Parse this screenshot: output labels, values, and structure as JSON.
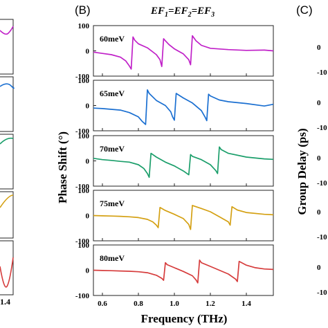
{
  "panel_b_label": "(B)",
  "panel_c_label": "(C)",
  "header_left": "EF",
  "header_sub_1": "1",
  "header_mid": "=EF",
  "header_sub_2": "2",
  "header_mid2": "=EF",
  "header_sub_3": "3",
  "left_partial_tick": "1.4",
  "right_axis_label": "Group Delay (ps)",
  "right_partial_ticks": [
    "0",
    "-10",
    "0",
    "-10",
    "0",
    "-10",
    "0",
    "-10",
    "0",
    "-10"
  ],
  "chart_data": {
    "type": "line",
    "xlabel": "Frequency (THz)",
    "ylabel": "Phase Shift (°)",
    "xlim": [
      0.55,
      1.55
    ],
    "ylim": [
      -100,
      100
    ],
    "xticks": [
      0.6,
      0.8,
      1.0,
      1.2,
      1.4
    ],
    "yticks": [
      100,
      0,
      -100
    ],
    "grid": false,
    "series": [
      {
        "name": "60meV",
        "color": "#c020c8",
        "x": [
          0.55,
          0.6,
          0.65,
          0.7,
          0.73,
          0.75,
          0.76,
          0.77,
          0.78,
          0.8,
          0.85,
          0.9,
          0.92,
          0.93,
          0.94,
          0.95,
          0.97,
          1.0,
          1.05,
          1.08,
          1.09,
          1.1,
          1.11,
          1.12,
          1.15,
          1.2,
          1.3,
          1.4,
          1.5,
          1.55
        ],
        "y": [
          -5,
          -10,
          -15,
          -25,
          -40,
          -60,
          -72,
          55,
          42,
          28,
          12,
          -15,
          -35,
          -62,
          48,
          40,
          25,
          8,
          -12,
          -35,
          -55,
          60,
          50,
          40,
          22,
          10,
          5,
          2,
          3,
          0
        ]
      },
      {
        "name": "65meV",
        "color": "#1a6fd1",
        "x": [
          0.55,
          0.6,
          0.65,
          0.7,
          0.75,
          0.8,
          0.82,
          0.84,
          0.85,
          0.86,
          0.9,
          0.95,
          0.98,
          0.99,
          1.0,
          1.01,
          1.05,
          1.1,
          1.15,
          1.17,
          1.18,
          1.19,
          1.2,
          1.25,
          1.3,
          1.4,
          1.5,
          1.55
        ],
        "y": [
          -10,
          -12,
          -15,
          -18,
          -28,
          -45,
          -62,
          -75,
          62,
          48,
          20,
          0,
          -25,
          -45,
          -58,
          48,
          30,
          10,
          -20,
          -45,
          -60,
          45,
          38,
          22,
          15,
          8,
          -2,
          5
        ]
      },
      {
        "name": "70meV",
        "color": "#1a9e6a",
        "x": [
          0.55,
          0.6,
          0.65,
          0.7,
          0.75,
          0.8,
          0.83,
          0.85,
          0.86,
          0.87,
          0.9,
          0.95,
          1.0,
          1.05,
          1.08,
          1.09,
          1.1,
          1.15,
          1.2,
          1.23,
          1.24,
          1.25,
          1.26,
          1.3,
          1.4,
          1.5,
          1.55
        ],
        "y": [
          10,
          5,
          2,
          -2,
          -5,
          -15,
          -30,
          -50,
          -65,
          30,
          15,
          -5,
          -20,
          -40,
          -55,
          25,
          18,
          5,
          -15,
          -38,
          -50,
          55,
          45,
          30,
          15,
          8,
          6
        ]
      },
      {
        "name": "75meV",
        "color": "#d4a012",
        "x": [
          0.55,
          0.6,
          0.65,
          0.7,
          0.75,
          0.8,
          0.85,
          0.88,
          0.9,
          0.91,
          0.92,
          0.95,
          1.0,
          1.05,
          1.08,
          1.09,
          1.1,
          1.15,
          1.2,
          1.25,
          1.3,
          1.31,
          1.32,
          1.35,
          1.4,
          1.5,
          1.55
        ],
        "y": [
          0,
          -1,
          -2,
          -3,
          -5,
          -8,
          -15,
          -25,
          -38,
          -48,
          32,
          20,
          5,
          -12,
          -35,
          -55,
          40,
          28,
          15,
          -5,
          -25,
          -38,
          35,
          22,
          12,
          5,
          3
        ]
      },
      {
        "name": "80meV",
        "color": "#d63c3c",
        "x": [
          0.55,
          0.6,
          0.65,
          0.7,
          0.75,
          0.8,
          0.85,
          0.9,
          0.93,
          0.94,
          0.95,
          0.96,
          1.0,
          1.05,
          1.1,
          1.12,
          1.13,
          1.14,
          1.15,
          1.2,
          1.25,
          1.3,
          1.34,
          1.35,
          1.36,
          1.4,
          1.45,
          1.5,
          1.55
        ],
        "y": [
          0,
          -1,
          -2,
          -3,
          -4,
          -6,
          -10,
          -20,
          -32,
          -40,
          30,
          22,
          10,
          -5,
          -22,
          -38,
          -50,
          40,
          30,
          15,
          0,
          -15,
          -35,
          -45,
          35,
          20,
          10,
          5,
          3
        ]
      }
    ]
  }
}
